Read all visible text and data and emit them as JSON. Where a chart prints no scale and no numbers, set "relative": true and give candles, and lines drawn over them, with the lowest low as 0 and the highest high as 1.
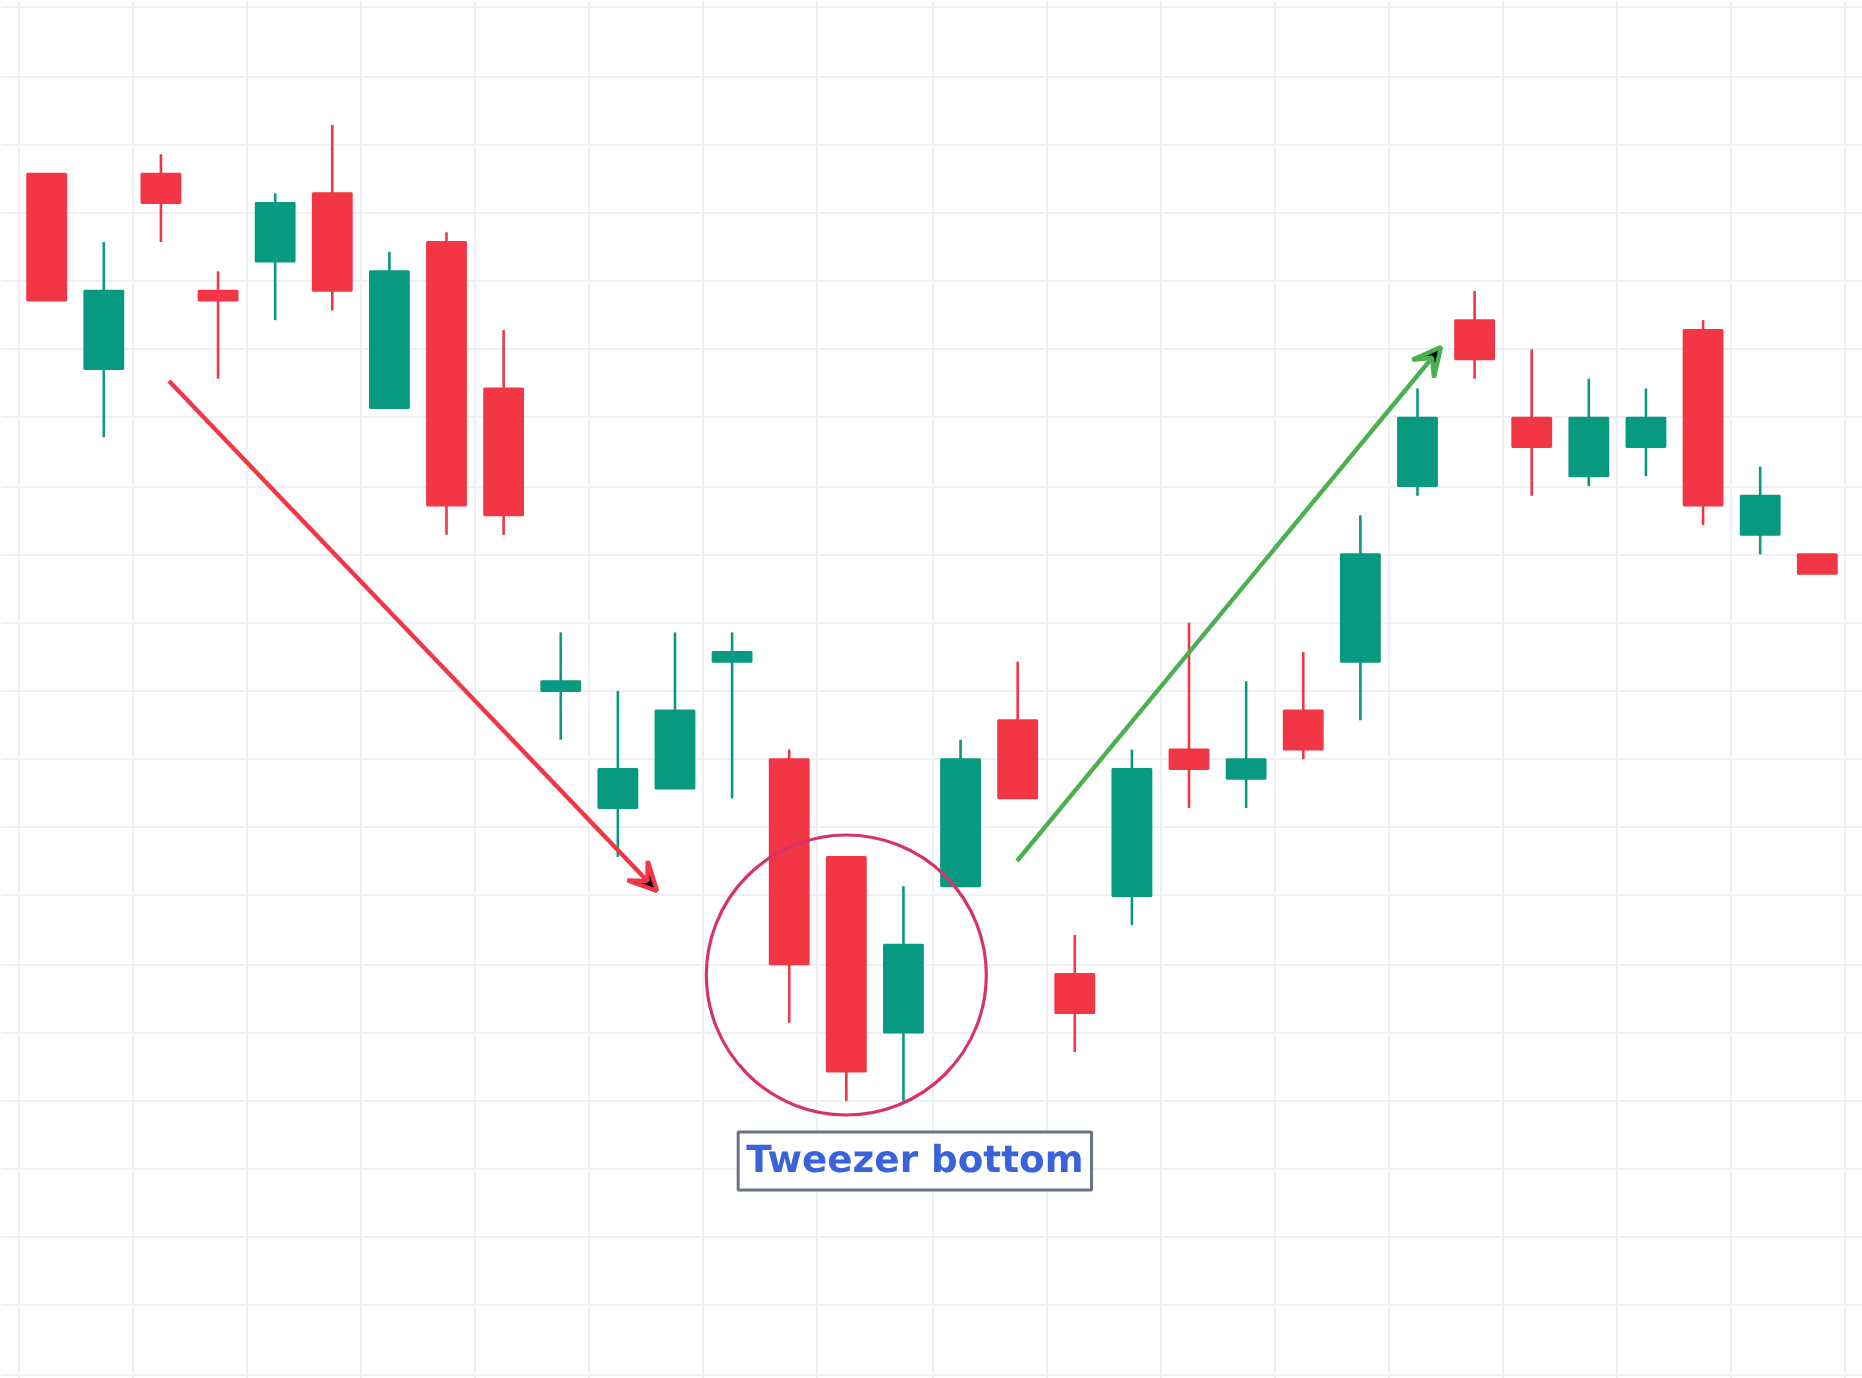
{
  "chart_data": {
    "type": "candlestick",
    "relative": true,
    "grid": true,
    "categories": [
      null,
      null,
      null,
      null,
      null,
      null,
      null,
      null,
      null,
      null,
      null,
      null,
      null,
      null,
      null,
      null,
      null,
      null,
      null,
      null,
      null,
      null,
      null,
      null,
      null,
      null,
      null,
      null,
      null,
      null,
      null,
      null
    ],
    "ohlc": [
      [
        0.95,
        0.95,
        0.82,
        0.82
      ],
      [
        0.75,
        0.88,
        0.68,
        0.83
      ],
      [
        0.95,
        0.97,
        0.88,
        0.92
      ],
      [
        0.83,
        0.85,
        0.74,
        0.82
      ],
      [
        0.86,
        0.93,
        0.8,
        0.92
      ],
      [
        0.93,
        1,
        0.81,
        0.83
      ],
      [
        0.71,
        0.87,
        0.71,
        0.85
      ],
      [
        0.88,
        0.89,
        0.58,
        0.61
      ],
      [
        0.73,
        0.79,
        0.58,
        0.6
      ],
      [
        0.42,
        0.48,
        0.37,
        0.43
      ],
      [
        0.3,
        0.42,
        0.25,
        0.34
      ],
      [
        0.32,
        0.48,
        0.32,
        0.4
      ],
      [
        0.45,
        0.48,
        0.31,
        0.46
      ],
      [
        0.35,
        0.36,
        0.08,
        0.14
      ],
      [
        0.25,
        0.25,
        0,
        0.03
      ],
      [
        0.07,
        0.22,
        0,
        0.16
      ],
      [
        0.22,
        0.37,
        0.22,
        0.35
      ],
      [
        0.39,
        0.45,
        0.31,
        0.31
      ],
      [
        0.13,
        0.17,
        0.05,
        0.09
      ],
      [
        0.21,
        0.36,
        0.18,
        0.34
      ],
      [
        0.36,
        0.49,
        0.3,
        0.34
      ],
      [
        0.33,
        0.43,
        0.3,
        0.35
      ],
      [
        0.4,
        0.46,
        0.35,
        0.36
      ],
      [
        0.45,
        0.6,
        0.39,
        0.56
      ],
      [
        0.63,
        0.73,
        0.62,
        0.7
      ],
      [
        0.8,
        0.83,
        0.74,
        0.76
      ],
      [
        0.7,
        0.77,
        0.62,
        0.67
      ],
      [
        0.64,
        0.74,
        0.63,
        0.7
      ],
      [
        0.67,
        0.73,
        0.64,
        0.7
      ],
      [
        0.79,
        0.8,
        0.59,
        0.61
      ],
      [
        0.58,
        0.65,
        0.56,
        0.62
      ],
      [
        0.56,
        0.56,
        0.54,
        0.54
      ]
    ],
    "colors": [
      "#f23645",
      "#089981",
      "#f23645",
      "#f23645",
      "#089981",
      "#f23645",
      "#089981",
      "#f23645",
      "#f23645",
      "#089981",
      "#089981",
      "#089981",
      "#089981",
      "#f23645",
      "#f23645",
      "#089981",
      "#089981",
      "#f23645",
      "#f23645",
      "#089981",
      "#f23645",
      "#089981",
      "#f23645",
      "#089981",
      "#089981",
      "#f23645",
      "#f23645",
      "#089981",
      "#089981",
      "#f23645",
      "#089981",
      "#f23645"
    ],
    "annotations": [
      "Tweezer bottom"
    ]
  }
}
